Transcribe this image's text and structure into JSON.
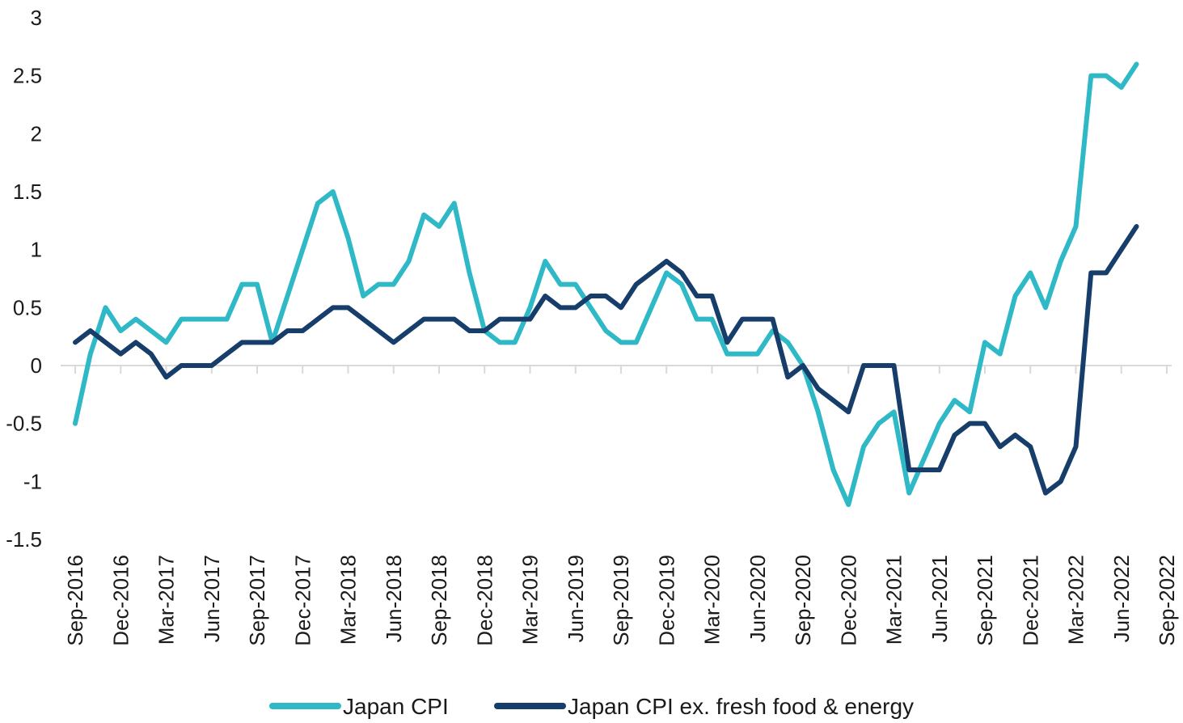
{
  "chart_data": {
    "type": "line",
    "title": "",
    "xlabel": "",
    "ylabel": "",
    "ylim": [
      -1.5,
      3
    ],
    "yticks": [
      3,
      2.5,
      2,
      1.5,
      1,
      0.5,
      0,
      -0.5,
      -1,
      -1.5
    ],
    "ytick_labels": [
      "3",
      "2.5",
      "2",
      "1.5",
      "1",
      "0.5",
      "0",
      "-0.5",
      "-1",
      "-1.5"
    ],
    "xtick_labels": [
      "Sep-2016",
      "Dec-2016",
      "Mar-2017",
      "Jun-2017",
      "Sep-2017",
      "Dec-2017",
      "Mar-2018",
      "Jun-2018",
      "Sep-2018",
      "Dec-2018",
      "Mar-2019",
      "Jun-2019",
      "Sep-2019",
      "Dec-2019",
      "Mar-2020",
      "Jun-2020",
      "Sep-2020",
      "Dec-2020",
      "Mar-2021",
      "Jun-2021",
      "Sep-2021",
      "Dec-2021",
      "Mar-2022",
      "Jun-2022",
      "Sep-2022"
    ],
    "months_span": 72,
    "legend_position": "bottom",
    "series": [
      {
        "name": "Japan CPI",
        "color": "#2fb9c7",
        "values": [
          -0.5,
          0.1,
          0.5,
          0.3,
          0.4,
          0.3,
          0.2,
          0.4,
          0.4,
          0.4,
          0.4,
          0.7,
          0.7,
          0.2,
          0.6,
          1.0,
          1.4,
          1.5,
          1.1,
          0.6,
          0.7,
          0.7,
          0.9,
          1.3,
          1.2,
          1.4,
          0.8,
          0.3,
          0.2,
          0.2,
          0.5,
          0.9,
          0.7,
          0.7,
          0.5,
          0.3,
          0.2,
          0.2,
          0.5,
          0.8,
          0.7,
          0.4,
          0.4,
          0.1,
          0.1,
          0.1,
          0.3,
          0.2,
          0.0,
          -0.4,
          -0.9,
          -1.2,
          -0.7,
          -0.5,
          -0.4,
          -1.1,
          -0.8,
          -0.5,
          -0.3,
          -0.4,
          0.2,
          0.1,
          0.6,
          0.8,
          0.5,
          0.9,
          1.2,
          2.5,
          2.5,
          2.4,
          2.6
        ]
      },
      {
        "name": "Japan CPI ex. fresh food & energy",
        "color": "#173d6a",
        "values": [
          0.2,
          0.3,
          0.2,
          0.1,
          0.2,
          0.1,
          -0.1,
          0.0,
          0.0,
          0.0,
          0.1,
          0.2,
          0.2,
          0.2,
          0.3,
          0.3,
          0.4,
          0.5,
          0.5,
          0.4,
          0.3,
          0.2,
          0.3,
          0.4,
          0.4,
          0.4,
          0.3,
          0.3,
          0.4,
          0.4,
          0.4,
          0.6,
          0.5,
          0.5,
          0.6,
          0.6,
          0.5,
          0.7,
          0.8,
          0.9,
          0.8,
          0.6,
          0.6,
          0.2,
          0.4,
          0.4,
          0.4,
          -0.1,
          0.0,
          -0.2,
          -0.3,
          -0.4,
          0.0,
          0.0,
          0.0,
          -0.9,
          -0.9,
          -0.9,
          -0.6,
          -0.5,
          -0.5,
          -0.7,
          -0.6,
          -0.7,
          -1.1,
          -1.0,
          -0.7,
          0.8,
          0.8,
          1.0,
          1.2
        ]
      }
    ]
  }
}
